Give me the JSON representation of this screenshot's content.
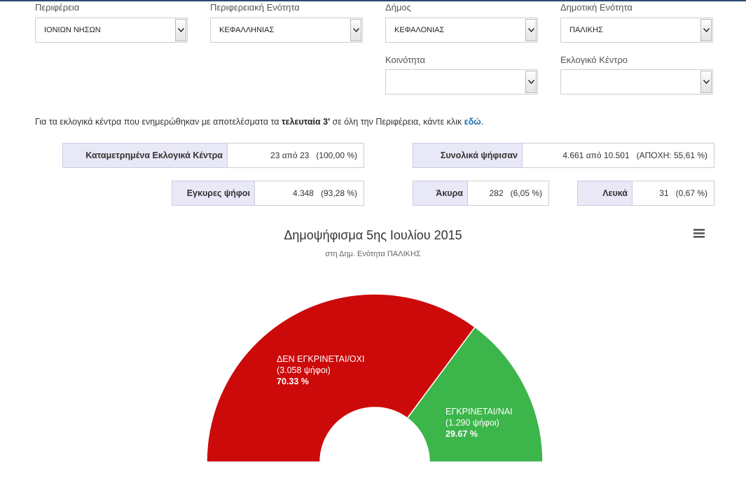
{
  "filters": [
    {
      "label": "Περιφέρεια",
      "value": "ΙΟΝΙΩΝ ΝΗΣΩΝ"
    },
    {
      "label": "Περιφερειακή Ενότητα",
      "value": "ΚΕΦΑΛΛΗΝΙΑΣ"
    },
    {
      "label": "Δήμος",
      "value": "ΚΕΦΑΛΟΝΙΑΣ"
    },
    {
      "label": "Δημοτική Ενότητα",
      "value": "ΠΑΛΙΚΗΣ"
    },
    {
      "label": "Κοινότητα",
      "value": ""
    },
    {
      "label": "Εκλογικό Κέντρο",
      "value": ""
    }
  ],
  "info": {
    "prefix": "Για τα εκλογικά κέντρα που ενημερώθηκαν με αποτελέσματα τα ",
    "bold": "τελευταία 3'",
    "middle": " σε όλη την Περιφέρεια, κάντε κλικ ",
    "link": "εδώ",
    "suffix": "."
  },
  "stats": {
    "counted": {
      "label": "Καταμετρημένα Εκλογικά Κέντρα",
      "value": "23 από 23   (100,00 %)"
    },
    "voted": {
      "label": "Συνολικά ψήφισαν",
      "value": "4.661 από 10.501   (ΑΠΟΧΗ: 55,61 %)"
    },
    "valid": {
      "label": "Εγκυρες ψήφοι",
      "value": "4.348   (93,28 %)"
    },
    "invalid": {
      "label": "Άκυρα",
      "value": "282   (6,05 %)"
    },
    "blank": {
      "label": "Λευκά",
      "value": "31   (0,67 %)"
    }
  },
  "chart_data": {
    "type": "pie",
    "title": "Δημοψήφισμα 5ης Ιουλίου 2015",
    "subtitle": "στη Δημ. Ενότητα ΠΑΛΙΚΗΣ",
    "series": [
      {
        "name": "ΔΕΝ ΕΓΚΡΙΝΕΤΑΙ/ΟΧΙ",
        "votes_label": "(3.058 ψήφοι)",
        "percent_label": "70.33 %",
        "value": 3058,
        "color": "#cc0a0a"
      },
      {
        "name": "ΕΓΚΡΙΝΕΤΑΙ/ΝΑΙ",
        "votes_label": "(1.290 ψήφοι)",
        "percent_label": "29.67 %",
        "value": 1290,
        "color": "#3cb54a"
      }
    ]
  },
  "icons": {
    "select_arrow": "chevron-down-icon",
    "menu": "hamburger-menu-icon"
  }
}
